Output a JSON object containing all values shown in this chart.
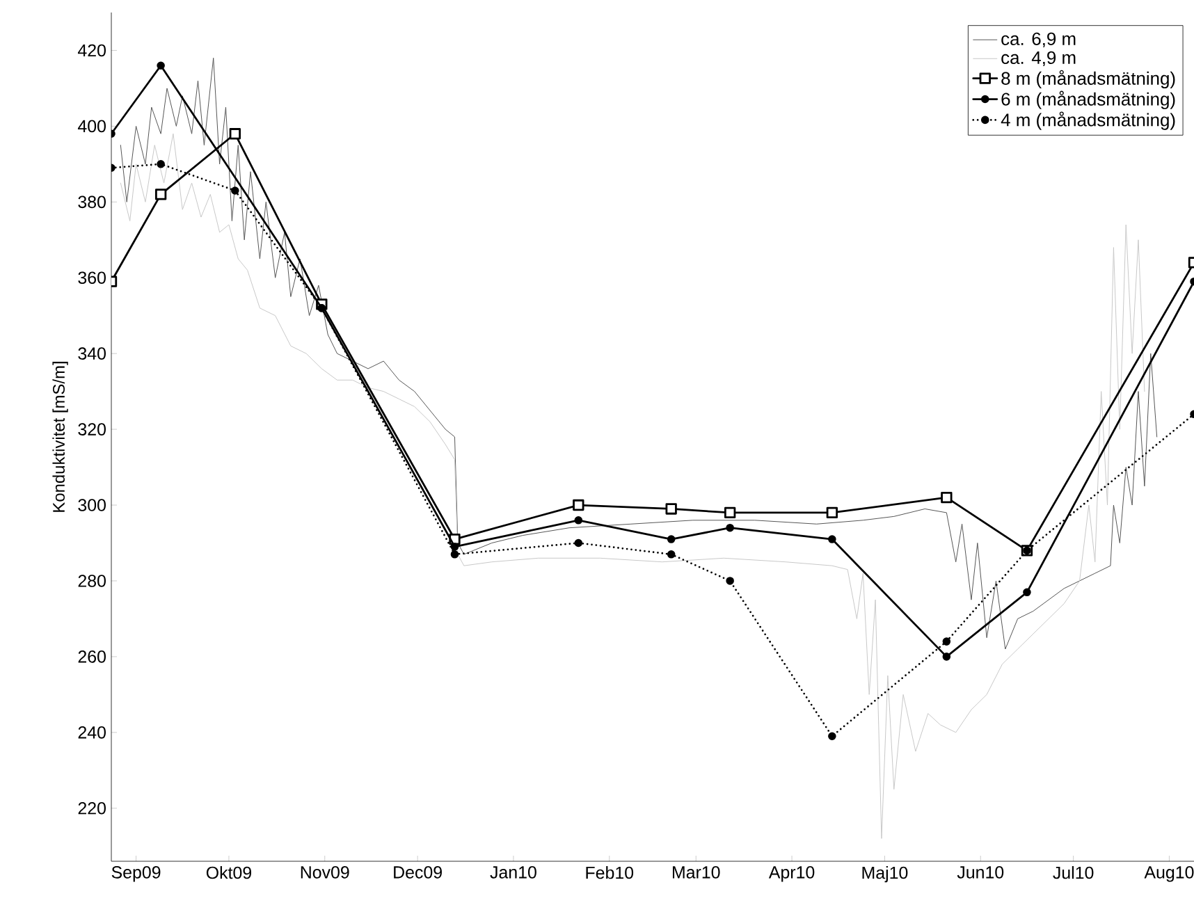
{
  "chart_data": {
    "type": "line",
    "ylabel": "Konduktivitet [mS/m]",
    "xlim": [
      "2009-08-24",
      "2010-08-09"
    ],
    "ylim": [
      206,
      430
    ],
    "xticks": [
      {
        "value": "2009-09-01",
        "label": "Sep09"
      },
      {
        "value": "2009-10-01",
        "label": "Okt09"
      },
      {
        "value": "2009-11-01",
        "label": "Nov09"
      },
      {
        "value": "2009-12-01",
        "label": "Dec09"
      },
      {
        "value": "2010-01-01",
        "label": "Jan10"
      },
      {
        "value": "2010-02-01",
        "label": "Feb10"
      },
      {
        "value": "2010-03-01",
        "label": "Mar10"
      },
      {
        "value": "2010-04-01",
        "label": "Apr10"
      },
      {
        "value": "2010-05-01",
        "label": "Maj10"
      },
      {
        "value": "2010-06-01",
        "label": "Jun10"
      },
      {
        "value": "2010-07-01",
        "label": "Jul10"
      },
      {
        "value": "2010-08-01",
        "label": "Aug10"
      }
    ],
    "yticks": [
      220,
      240,
      260,
      280,
      300,
      320,
      340,
      360,
      380,
      400,
      420
    ],
    "legend": "top right",
    "series": [
      {
        "name": "ca. 6,9 m",
        "color": "#555555",
        "marker": "none",
        "line_style": "solid",
        "x": [
          "2009-08-27",
          "2009-08-29",
          "2009-09-01",
          "2009-09-04",
          "2009-09-06",
          "2009-09-09",
          "2009-09-11",
          "2009-09-14",
          "2009-09-16",
          "2009-09-19",
          "2009-09-21",
          "2009-09-23",
          "2009-09-26",
          "2009-09-28",
          "2009-09-30",
          "2009-10-02",
          "2009-10-04",
          "2009-10-06",
          "2009-10-08",
          "2009-10-11",
          "2009-10-13",
          "2009-10-16",
          "2009-10-19",
          "2009-10-21",
          "2009-10-24",
          "2009-10-27",
          "2009-10-30",
          "2009-11-02",
          "2009-11-05",
          "2009-11-10",
          "2009-11-15",
          "2009-11-20",
          "2009-11-25",
          "2009-11-30",
          "2009-12-05",
          "2009-12-10",
          "2009-12-13",
          "2009-12-14",
          "2009-12-16",
          "2009-12-25",
          "2010-01-04",
          "2010-01-19",
          "2010-02-08",
          "2010-02-28",
          "2010-03-20",
          "2010-04-09",
          "2010-04-24",
          "2010-05-04",
          "2010-05-14",
          "2010-05-21",
          "2010-05-24",
          "2010-05-26",
          "2010-05-29",
          "2010-05-31",
          "2010-06-03",
          "2010-06-06",
          "2010-06-09",
          "2010-06-13",
          "2010-06-18",
          "2010-06-23",
          "2010-06-28",
          "2010-07-03",
          "2010-07-08",
          "2010-07-13",
          "2010-07-14",
          "2010-07-16",
          "2010-07-18",
          "2010-07-20",
          "2010-07-22",
          "2010-07-24",
          "2010-07-26",
          "2010-07-28"
        ],
        "values": [
          395,
          380,
          400,
          390,
          405,
          398,
          410,
          400,
          408,
          398,
          412,
          395,
          418,
          390,
          405,
          375,
          395,
          370,
          388,
          365,
          380,
          360,
          372,
          355,
          365,
          350,
          358,
          345,
          340,
          338,
          336,
          338,
          333,
          330,
          325,
          320,
          318,
          290,
          287,
          290,
          292,
          294,
          295,
          296,
          296,
          295,
          296,
          297,
          299,
          298,
          285,
          295,
          275,
          290,
          265,
          280,
          262,
          270,
          272,
          275,
          278,
          280,
          282,
          284,
          300,
          290,
          310,
          300,
          330,
          305,
          340,
          318
        ]
      },
      {
        "name": "ca. 4,9 m",
        "color": "#c8c8c8",
        "marker": "none",
        "line_style": "solid",
        "x": [
          "2009-08-27",
          "2009-08-30",
          "2009-09-01",
          "2009-09-04",
          "2009-09-07",
          "2009-09-10",
          "2009-09-13",
          "2009-09-16",
          "2009-09-19",
          "2009-09-22",
          "2009-09-25",
          "2009-09-28",
          "2009-10-01",
          "2009-10-04",
          "2009-10-07",
          "2009-10-11",
          "2009-10-16",
          "2009-10-21",
          "2009-10-26",
          "2009-10-31",
          "2009-11-05",
          "2009-11-10",
          "2009-11-15",
          "2009-11-20",
          "2009-11-25",
          "2009-11-30",
          "2009-12-05",
          "2009-12-10",
          "2009-12-13",
          "2009-12-14",
          "2009-12-16",
          "2009-12-25",
          "2010-01-09",
          "2010-01-29",
          "2010-02-18",
          "2010-03-10",
          "2010-03-30",
          "2010-04-14",
          "2010-04-19",
          "2010-04-22",
          "2010-04-24",
          "2010-04-26",
          "2010-04-28",
          "2010-04-30",
          "2010-05-02",
          "2010-05-04",
          "2010-05-07",
          "2010-05-11",
          "2010-05-15",
          "2010-05-19",
          "2010-05-24",
          "2010-05-29",
          "2010-06-03",
          "2010-06-08",
          "2010-06-13",
          "2010-06-18",
          "2010-06-23",
          "2010-06-28",
          "2010-07-03",
          "2010-07-06",
          "2010-07-08",
          "2010-07-10",
          "2010-07-12",
          "2010-07-14",
          "2010-07-16",
          "2010-07-18",
          "2010-07-20",
          "2010-07-22",
          "2010-07-24"
        ],
        "values": [
          385,
          375,
          390,
          380,
          395,
          385,
          398,
          378,
          385,
          376,
          382,
          372,
          374,
          365,
          362,
          352,
          350,
          342,
          340,
          336,
          333,
          333,
          331,
          330,
          328,
          326,
          322,
          316,
          312,
          287,
          284,
          285,
          286,
          286,
          285,
          286,
          285,
          284,
          283,
          270,
          282,
          250,
          275,
          212,
          255,
          225,
          250,
          235,
          245,
          242,
          240,
          246,
          250,
          258,
          262,
          266,
          270,
          274,
          280,
          300,
          285,
          330,
          300,
          368,
          320,
          374,
          340,
          370,
          330
        ]
      },
      {
        "name": "8 m (månadsmätning)",
        "color": "#000000",
        "marker": "square",
        "line_style": "solid",
        "x": [
          "2009-08-24",
          "2009-09-09",
          "2009-10-03",
          "2009-10-31",
          "2009-12-13",
          "2010-01-22",
          "2010-02-21",
          "2010-03-12",
          "2010-04-14",
          "2010-05-21",
          "2010-06-16",
          "2010-08-09"
        ],
        "values": [
          359,
          382,
          398,
          353,
          291,
          300,
          299,
          298,
          298,
          302,
          288,
          364
        ]
      },
      {
        "name": "6 m (månadsmätning)",
        "color": "#000000",
        "marker": "circle",
        "line_style": "solid",
        "x": [
          "2009-08-24",
          "2009-09-09",
          "2009-10-31",
          "2009-12-13",
          "2010-01-22",
          "2010-02-21",
          "2010-03-12",
          "2010-04-14",
          "2010-05-21",
          "2010-06-16",
          "2010-08-09"
        ],
        "values": [
          398,
          416,
          352,
          289,
          296,
          291,
          294,
          291,
          260,
          277,
          359
        ]
      },
      {
        "name": "4 m (månadsmätning)",
        "color": "#000000",
        "marker": "circle",
        "line_style": "dotted",
        "x": [
          "2009-08-24",
          "2009-09-09",
          "2009-10-03",
          "2009-10-31",
          "2009-12-13",
          "2010-01-22",
          "2010-02-21",
          "2010-03-12",
          "2010-04-14",
          "2010-05-21",
          "2010-06-16",
          "2010-08-09"
        ],
        "values": [
          389,
          390,
          383,
          352,
          287,
          290,
          287,
          280,
          239,
          264,
          288,
          324
        ]
      }
    ]
  }
}
